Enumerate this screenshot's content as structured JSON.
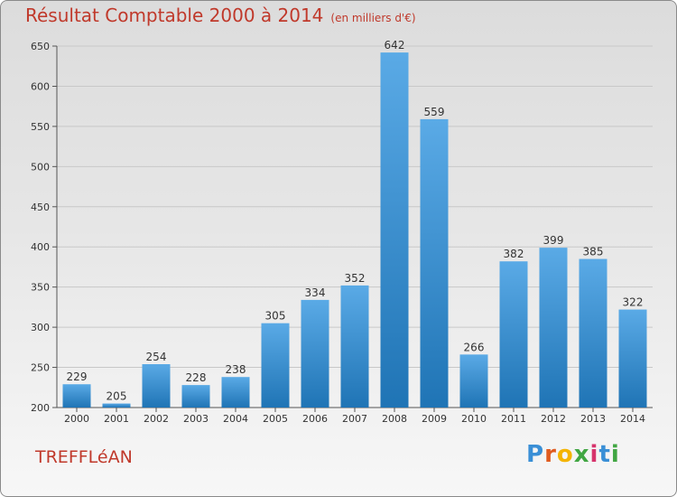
{
  "page": {
    "title": "Résultat Comptable 2000 à 2014",
    "subtitle": "(en milliers d'€)",
    "commune": "TREFFLéAN",
    "logo": "Proxiti"
  },
  "colors": {
    "accent": "#c0392b",
    "bar_top": "#5aaae6",
    "bar_bottom": "#1f74b5",
    "logo_letters": [
      "#3a8fd6",
      "#e05b1f",
      "#f4b400",
      "#41a643",
      "#d6336c",
      "#3a8fd6",
      "#41a643"
    ]
  },
  "chart_data": {
    "type": "bar",
    "title": "Résultat Comptable 2000 à 2014",
    "categories": [
      "2000",
      "2001",
      "2002",
      "2003",
      "2004",
      "2005",
      "2006",
      "2007",
      "2008",
      "2009",
      "2010",
      "2011",
      "2012",
      "2013",
      "2014"
    ],
    "values": [
      229,
      205,
      254,
      228,
      238,
      305,
      334,
      352,
      642,
      559,
      266,
      382,
      399,
      385,
      322
    ],
    "ylim": [
      200,
      650
    ],
    "yticks": [
      200,
      250,
      300,
      350,
      400,
      450,
      500,
      550,
      600,
      650
    ],
    "grid": true,
    "xlabel": "",
    "ylabel": ""
  }
}
